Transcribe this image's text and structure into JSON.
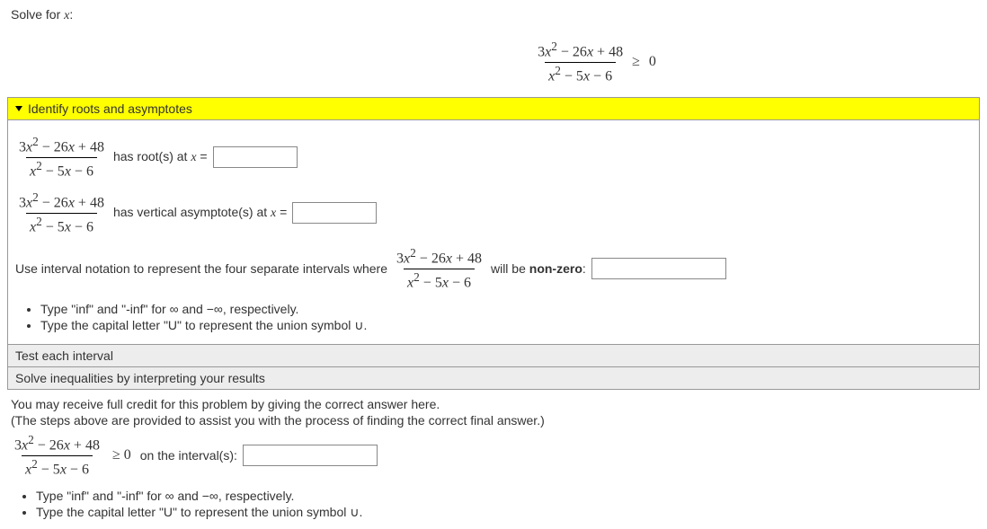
{
  "prompt": "Solve for x:",
  "main_inequality": {
    "numerator": "3x² − 26x + 48",
    "denominator": "x² − 5x − 6",
    "relation": "≥",
    "rhs": "0"
  },
  "section_identify": {
    "header": "Identify roots and asymptotes",
    "rational": {
      "numerator": "3x² − 26x + 48",
      "denominator": "x² − 5x − 6"
    },
    "roots_text": "has root(s) at x =",
    "asymptotes_text": "has vertical asymptote(s) at x =",
    "interval_pre": "Use interval notation to represent the four separate intervals where",
    "interval_post": "will be",
    "interval_nonzero": "non-zero",
    "interval_colon": ":",
    "hint1": "Type \"inf\" and \"-inf\" for ∞ and −∞, respectively.",
    "hint2": "Type the capital letter \"U\" to represent the union symbol ∪."
  },
  "section_test": {
    "header": "Test each interval"
  },
  "section_solve": {
    "header": "Solve inequalities by interpreting your results"
  },
  "final": {
    "credit_line": "You may receive full credit for this problem by giving the correct answer here.",
    "steps_line": "(The steps above are provided to assist you with the process of finding the correct final answer.)",
    "rational": {
      "numerator": "3x² − 26x + 48",
      "denominator": "x² − 5x − 6"
    },
    "relation": "≥ 0",
    "on_interval": "on the interval(s):",
    "hint1": "Type \"inf\" and \"-inf\" for ∞ and −∞, respectively.",
    "hint2": "Type the capital letter \"U\" to represent the union symbol ∪."
  },
  "style": {
    "highlight_bg": "#ffff00",
    "frac_num": "3x² − 26x + 48",
    "frac_den": "x² − 5x − 6"
  }
}
